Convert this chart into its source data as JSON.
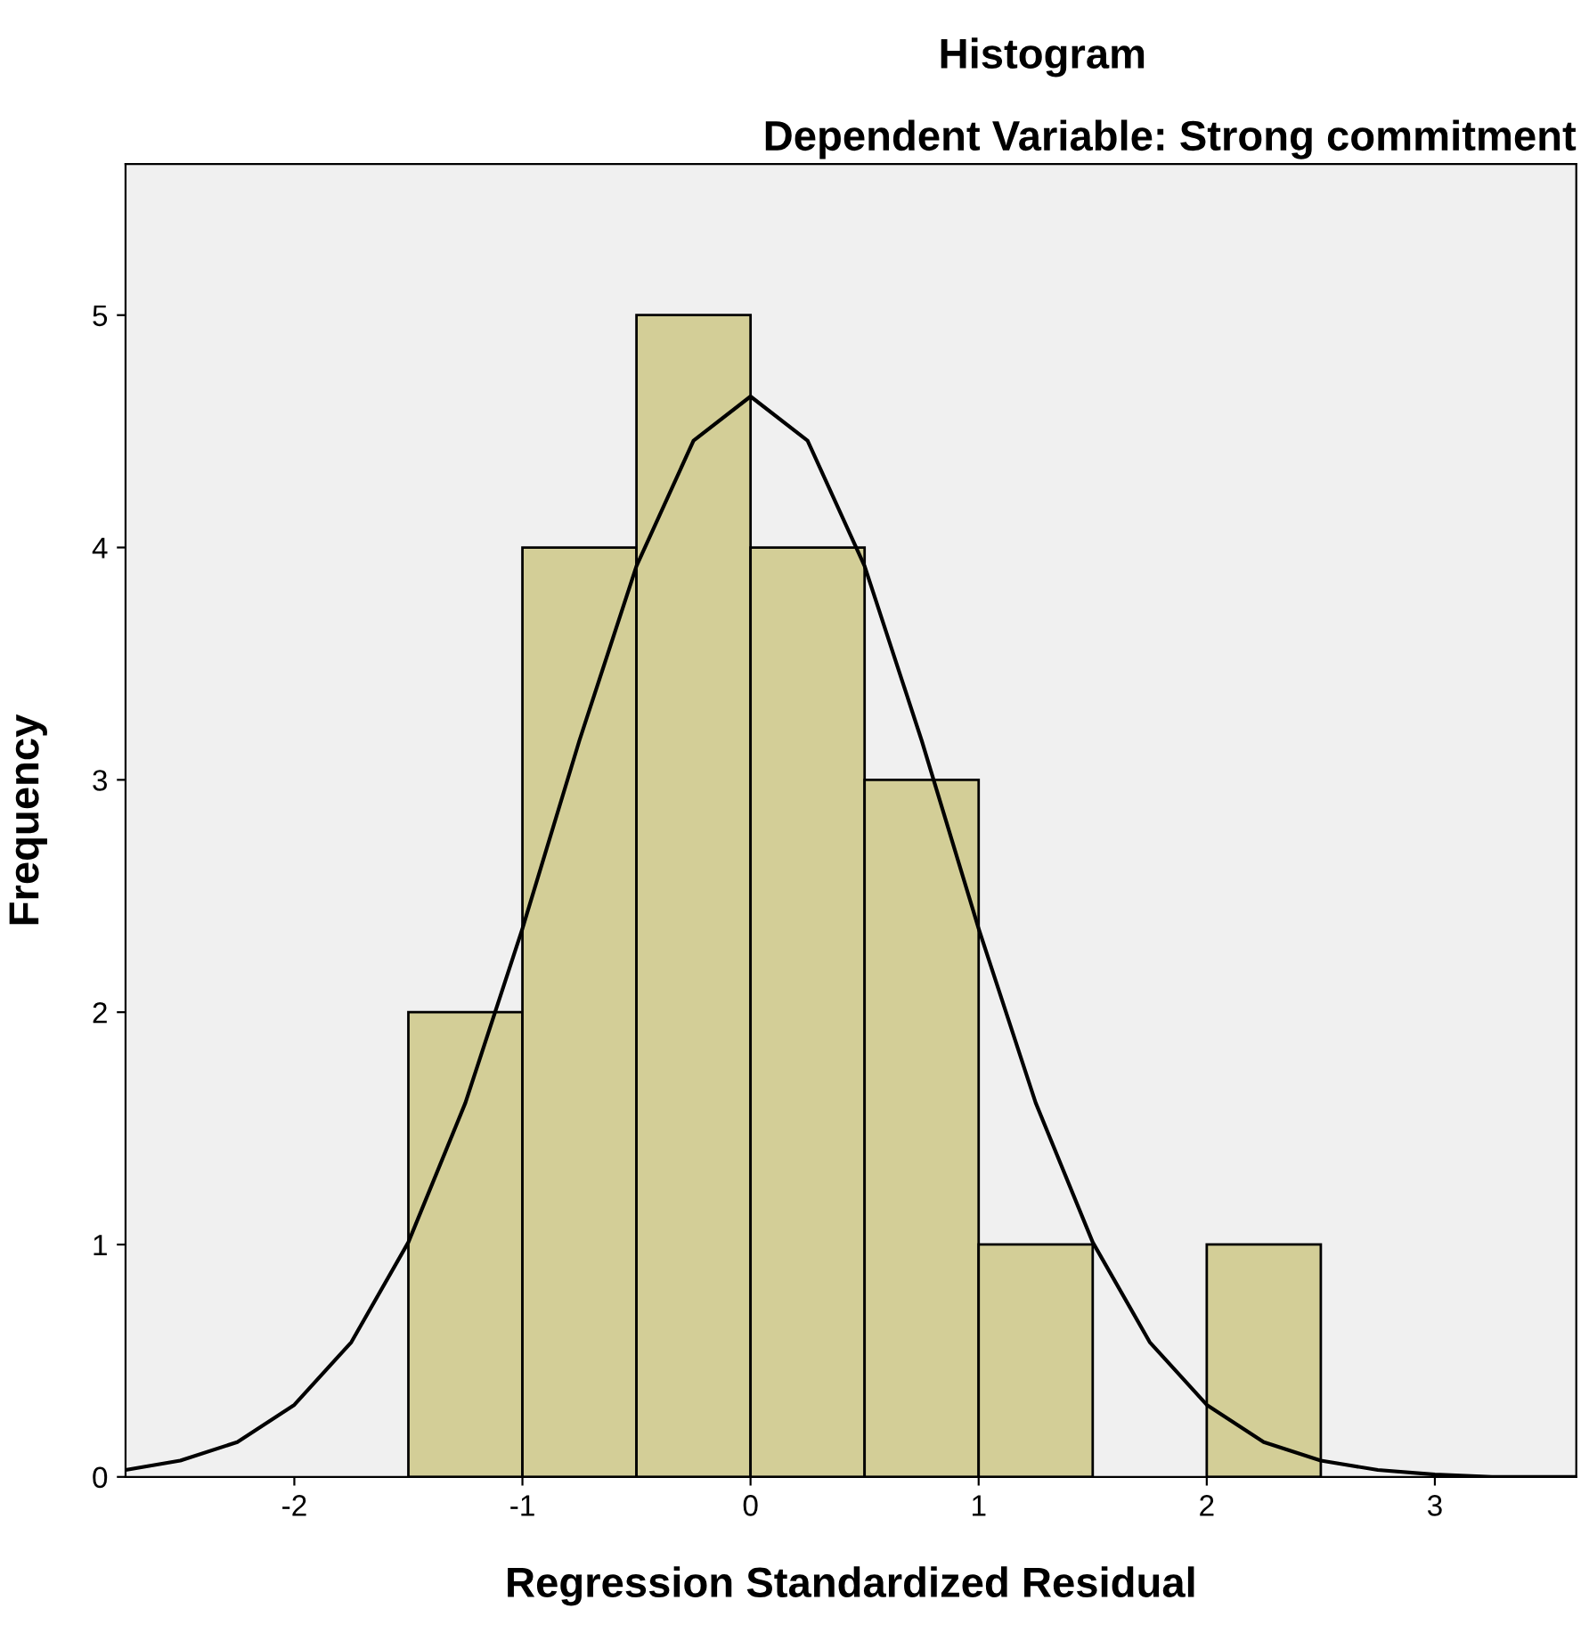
{
  "chart_data": {
    "type": "histogram",
    "title": "Histogram",
    "subtitle": "Dependent Variable: Strong commitment",
    "xlabel": "Regression Standardized Residual",
    "ylabel": "Frequency",
    "bins": [
      -1.5,
      -1.0,
      -0.5,
      0.0,
      0.5,
      1.0,
      1.5,
      2.0,
      2.5
    ],
    "series": [
      {
        "type": "histogram",
        "color": "#d3ce97",
        "values": [
          2,
          4,
          5,
          4,
          3,
          1,
          0,
          1
        ]
      },
      {
        "type": "line",
        "color": "#000000",
        "x": [
          -2.74,
          -2.5,
          -2.25,
          -2.0,
          -1.75,
          -1.5,
          -1.25,
          -1.0,
          -0.75,
          -0.5,
          -0.25,
          0.0,
          0.25,
          0.5,
          0.75,
          1.0,
          1.25,
          1.5,
          1.75,
          2.0,
          2.25,
          2.5,
          2.75,
          3.0,
          3.25,
          3.62
        ],
        "values": [
          0.03,
          0.07,
          0.15,
          0.31,
          0.58,
          1.01,
          1.61,
          2.36,
          3.17,
          3.92,
          4.46,
          4.65,
          4.46,
          3.92,
          3.17,
          2.36,
          1.61,
          1.01,
          0.58,
          0.31,
          0.15,
          0.07,
          0.03,
          0.01,
          0.0,
          0.0
        ]
      }
    ],
    "xlim": [
      -2.74,
      3.62
    ],
    "ylim": [
      0,
      5.65
    ],
    "xticks": [
      -2,
      -1,
      0,
      1,
      2,
      3
    ],
    "yticks": [
      0,
      1,
      2,
      3,
      4,
      5
    ],
    "grid": false,
    "marker": "none",
    "line_style": "solid",
    "legend": false
  }
}
